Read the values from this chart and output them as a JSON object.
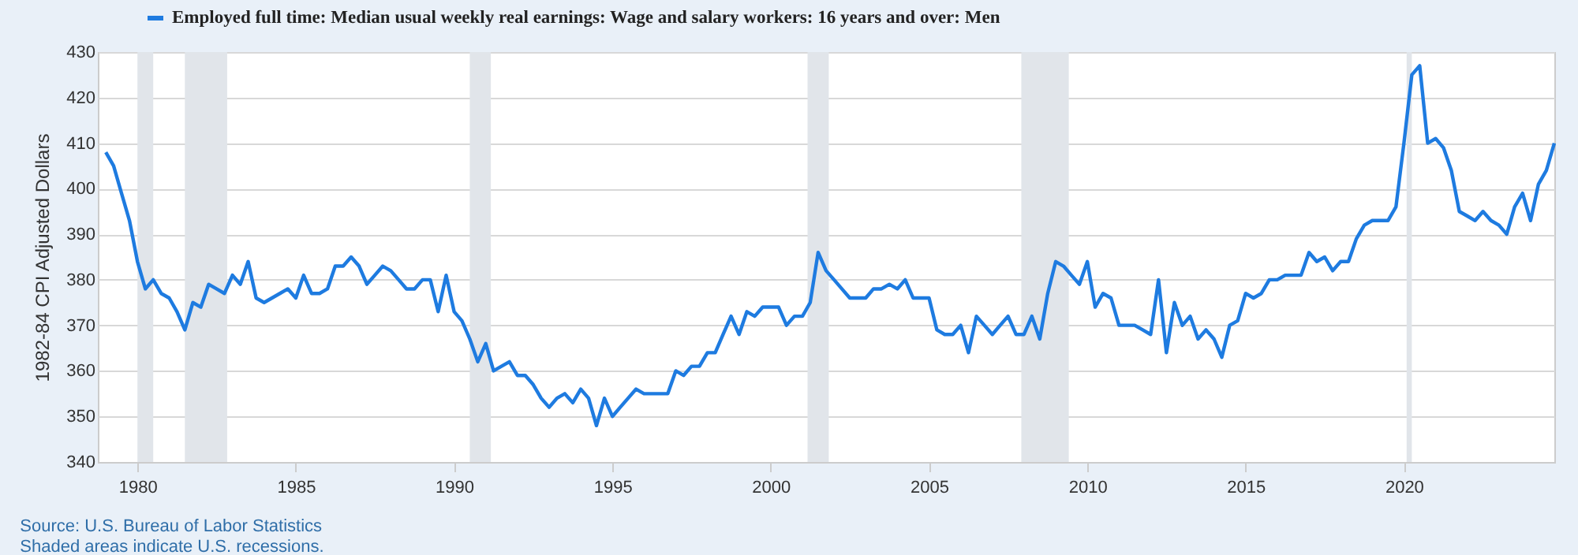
{
  "chart_data": {
    "type": "line",
    "ylabel": "1982-84 CPI Adjusted Dollars",
    "annotations": [
      "Source: U.S. Bureau of Labor Statistics",
      "Shaded areas indicate U.S. recessions."
    ],
    "x": [
      "1979-01",
      "1979-04",
      "1979-07",
      "1979-10",
      "1980-01",
      "1980-04",
      "1980-07",
      "1980-10",
      "1981-01",
      "1981-04",
      "1981-07",
      "1981-10",
      "1982-01",
      "1982-04",
      "1982-07",
      "1982-10",
      "1983-01",
      "1983-04",
      "1983-07",
      "1983-10",
      "1984-01",
      "1984-04",
      "1984-07",
      "1984-10",
      "1985-01",
      "1985-04",
      "1985-07",
      "1985-10",
      "1986-01",
      "1986-04",
      "1986-07",
      "1986-10",
      "1987-01",
      "1987-04",
      "1987-07",
      "1987-10",
      "1988-01",
      "1988-04",
      "1988-07",
      "1988-10",
      "1989-01",
      "1989-04",
      "1989-07",
      "1989-10",
      "1990-01",
      "1990-04",
      "1990-07",
      "1990-10",
      "1991-01",
      "1991-04",
      "1991-07",
      "1991-10",
      "1992-01",
      "1992-04",
      "1992-07",
      "1992-10",
      "1993-01",
      "1993-04",
      "1993-07",
      "1993-10",
      "1994-01",
      "1994-04",
      "1994-07",
      "1994-10",
      "1995-01",
      "1995-04",
      "1995-07",
      "1995-10",
      "1996-01",
      "1996-04",
      "1996-07",
      "1996-10",
      "1997-01",
      "1997-04",
      "1997-07",
      "1997-10",
      "1998-01",
      "1998-04",
      "1998-07",
      "1998-10",
      "1999-01",
      "1999-04",
      "1999-07",
      "1999-10",
      "2000-01",
      "2000-04",
      "2000-07",
      "2000-10",
      "2001-01",
      "2001-04",
      "2001-07",
      "2001-10",
      "2002-01",
      "2002-04",
      "2002-07",
      "2002-10",
      "2003-01",
      "2003-04",
      "2003-07",
      "2003-10",
      "2004-01",
      "2004-04",
      "2004-07",
      "2004-10",
      "2005-01",
      "2005-04",
      "2005-07",
      "2005-10",
      "2006-01",
      "2006-04",
      "2006-07",
      "2006-10",
      "2007-01",
      "2007-04",
      "2007-07",
      "2007-10",
      "2008-01",
      "2008-04",
      "2008-07",
      "2008-10",
      "2009-01",
      "2009-04",
      "2009-07",
      "2009-10",
      "2010-01",
      "2010-04",
      "2010-07",
      "2010-10",
      "2011-01",
      "2011-04",
      "2011-07",
      "2011-10",
      "2012-01",
      "2012-04",
      "2012-07",
      "2012-10",
      "2013-01",
      "2013-04",
      "2013-07",
      "2013-10",
      "2014-01",
      "2014-04",
      "2014-07",
      "2014-10",
      "2015-01",
      "2015-04",
      "2015-07",
      "2015-10",
      "2016-01",
      "2016-04",
      "2016-07",
      "2016-10",
      "2017-01",
      "2017-04",
      "2017-07",
      "2017-10",
      "2018-01",
      "2018-04",
      "2018-07",
      "2018-10",
      "2019-01",
      "2019-04",
      "2019-07",
      "2019-10",
      "2020-01",
      "2020-04",
      "2020-07",
      "2020-10",
      "2021-01",
      "2021-04",
      "2021-07",
      "2021-10",
      "2022-01",
      "2022-04",
      "2022-07",
      "2022-10",
      "2023-01",
      "2023-04",
      "2023-07",
      "2023-10",
      "2024-01",
      "2024-04",
      "2024-07",
      "2024-10"
    ],
    "series": [
      {
        "name": "Employed full time: Median usual weekly real earnings: Wage and salary workers: 16 years and over: Men",
        "color": "#1e7be0",
        "values": [
          408,
          405,
          399,
          393,
          384,
          378,
          380,
          377,
          376,
          373,
          369,
          375,
          374,
          379,
          378,
          377,
          381,
          379,
          384,
          376,
          375,
          376,
          377,
          378,
          376,
          381,
          377,
          377,
          378,
          383,
          383,
          385,
          383,
          379,
          381,
          383,
          382,
          380,
          378,
          378,
          380,
          380,
          373,
          381,
          373,
          371,
          367,
          362,
          366,
          360,
          361,
          362,
          359,
          359,
          357,
          354,
          352,
          354,
          355,
          353,
          356,
          354,
          348,
          354,
          350,
          352,
          354,
          356,
          355,
          355,
          355,
          355,
          360,
          359,
          361,
          361,
          364,
          364,
          368,
          372,
          368,
          373,
          372,
          374,
          374,
          374,
          370,
          372,
          372,
          375,
          386,
          382,
          380,
          378,
          376,
          376,
          376,
          378,
          378,
          379,
          378,
          380,
          376,
          376,
          376,
          369,
          368,
          368,
          370,
          364,
          372,
          370,
          368,
          370,
          372,
          368,
          368,
          372,
          367,
          377,
          384,
          383,
          381,
          379,
          384,
          374,
          377,
          376,
          370,
          370,
          370,
          369,
          368,
          380,
          364,
          375,
          370,
          372,
          367,
          369,
          367,
          363,
          370,
          371,
          377,
          376,
          377,
          380,
          380,
          381,
          381,
          381,
          386,
          384,
          385,
          382,
          384,
          384,
          389,
          392,
          393,
          393,
          393,
          396,
          410,
          425,
          427,
          410,
          411,
          409,
          404,
          395,
          394,
          393,
          395,
          393,
          392,
          390,
          396,
          399,
          393,
          401,
          404,
          410
        ]
      }
    ],
    "xlim": [
      "1978-10",
      "2024-10"
    ],
    "xticks": [
      "1980",
      "1985",
      "1990",
      "1995",
      "2000",
      "2005",
      "2010",
      "2015",
      "2020"
    ],
    "ylim": [
      340,
      430
    ],
    "yticks": [
      340,
      350,
      360,
      370,
      380,
      390,
      400,
      410,
      420,
      430
    ],
    "bands": [
      {
        "axis": "x",
        "from": "1980-01",
        "to": "1980-07",
        "color": "#e1e5ea"
      },
      {
        "axis": "x",
        "from": "1981-07",
        "to": "1982-11",
        "color": "#e1e5ea"
      },
      {
        "axis": "x",
        "from": "1990-07",
        "to": "1991-03",
        "color": "#e1e5ea"
      },
      {
        "axis": "x",
        "from": "2001-03",
        "to": "2001-11",
        "color": "#e1e5ea"
      },
      {
        "axis": "x",
        "from": "2007-12",
        "to": "2009-06",
        "color": "#e1e5ea"
      },
      {
        "axis": "x",
        "from": "2020-02",
        "to": "2020-04",
        "color": "#e1e5ea"
      }
    ],
    "grid": "y",
    "legend": "top left"
  }
}
